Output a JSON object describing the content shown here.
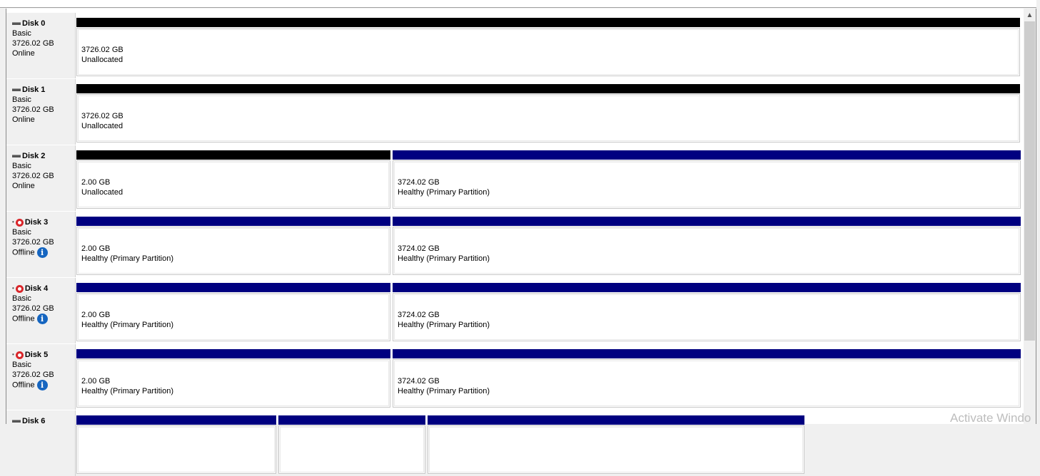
{
  "colors": {
    "unallocated": "#000000",
    "primary": "#000080"
  },
  "disks": [
    {
      "name": "Disk 0",
      "type": "Basic",
      "size": "3726.02 GB",
      "status": "Online",
      "icon": "disk-icon",
      "parts": [
        {
          "size": "3726.02 GB",
          "status": "Unallocated",
          "kind": "unallocated",
          "share": 1
        }
      ]
    },
    {
      "name": "Disk 1",
      "type": "Basic",
      "size": "3726.02 GB",
      "status": "Online",
      "icon": "disk-icon",
      "parts": [
        {
          "size": "3726.02 GB",
          "status": "Unallocated",
          "kind": "unallocated",
          "share": 1
        }
      ]
    },
    {
      "name": "Disk 2",
      "type": "Basic",
      "size": "3726.02 GB",
      "status": "Online",
      "icon": "disk-icon",
      "parts": [
        {
          "size": "2.00 GB",
          "status": "Unallocated",
          "kind": "unallocated",
          "share": 0.334
        },
        {
          "size": "3724.02 GB",
          "status": "Healthy (Primary Partition)",
          "kind": "primary",
          "share": 0.666
        }
      ]
    },
    {
      "name": "Disk 3",
      "type": "Basic",
      "size": "3726.02 GB",
      "status": "Offline",
      "icon": "offline-disk-icon",
      "info": true,
      "parts": [
        {
          "size": "2.00 GB",
          "status": "Healthy (Primary Partition)",
          "kind": "primary",
          "share": 0.334
        },
        {
          "size": "3724.02 GB",
          "status": "Healthy (Primary Partition)",
          "kind": "primary",
          "share": 0.666
        }
      ]
    },
    {
      "name": "Disk 4",
      "type": "Basic",
      "size": "3726.02 GB",
      "status": "Offline",
      "icon": "offline-disk-icon",
      "info": true,
      "parts": [
        {
          "size": "2.00 GB",
          "status": "Healthy (Primary Partition)",
          "kind": "primary",
          "share": 0.334
        },
        {
          "size": "3724.02 GB",
          "status": "Healthy (Primary Partition)",
          "kind": "primary",
          "share": 0.666
        }
      ]
    },
    {
      "name": "Disk 5",
      "type": "Basic",
      "size": "3726.02 GB",
      "status": "Offline",
      "icon": "offline-disk-icon",
      "info": true,
      "parts": [
        {
          "size": "2.00 GB",
          "status": "Healthy (Primary Partition)",
          "kind": "primary",
          "share": 0.334
        },
        {
          "size": "3724.02 GB",
          "status": "Healthy (Primary Partition)",
          "kind": "primary",
          "share": 0.666
        }
      ]
    },
    {
      "name": "Disk 6",
      "icon": "disk-icon",
      "parts": [
        {
          "kind": "primary",
          "share": 0.213
        },
        {
          "kind": "primary",
          "share": 0.157
        },
        {
          "kind": "primary",
          "share": 0.4
        }
      ]
    }
  ],
  "watermark": "Activate Windo"
}
